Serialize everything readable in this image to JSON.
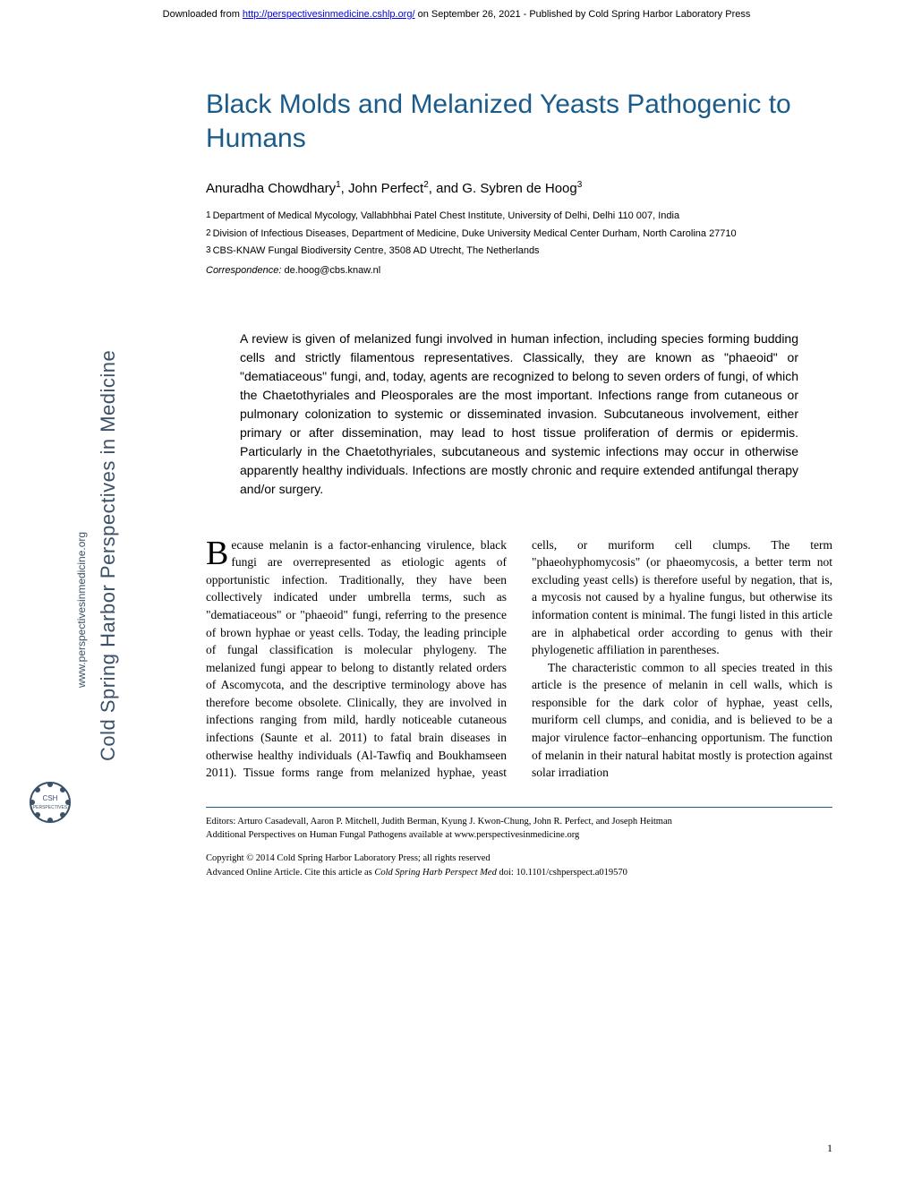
{
  "download_header": {
    "prefix": "Downloaded from ",
    "url": "http://perspectivesinmedicine.cshlp.org/",
    "suffix": " on September 26, 2021 - Published by Cold Spring Harbor Laboratory Press"
  },
  "sidebar": {
    "journal_name": "Cold Spring Harbor Perspectives in Medicine",
    "website": "www.perspectivesinmedicine.org",
    "logo_label": "CSHL PERSPECTIVES"
  },
  "title": "Black Molds and Melanized Yeasts Pathogenic to Humans",
  "authors_html": "Anuradha Chowdhary<sup>1</sup>, John Perfect<sup>2</sup>, and G. Sybren de Hoog<sup>3</sup>",
  "affiliations": [
    {
      "num": "1",
      "text": "Department of Medical Mycology, Vallabhbhai Patel Chest Institute, University of Delhi, Delhi 110 007, India"
    },
    {
      "num": "2",
      "text": "Division of Infectious Diseases, Department of Medicine, Duke University Medical Center Durham, North Carolina 27710"
    },
    {
      "num": "3",
      "text": "CBS-KNAW Fungal Biodiversity Centre, 3508 AD Utrecht, The Netherlands"
    }
  ],
  "correspondence": {
    "label": "Correspondence:",
    "email": "de.hoog@cbs.knaw.nl"
  },
  "abstract": "A review is given of melanized fungi involved in human infection, including species forming budding cells and strictly filamentous representatives. Classically, they are known as \"phaeoid\" or \"dematiaceous\" fungi, and, today, agents are recognized to belong to seven orders of fungi, of which the Chaetothyriales and Pleosporales are the most important. Infections range from cutaneous or pulmonary colonization to systemic or disseminated invasion. Subcutaneous involvement, either primary or after dissemination, may lead to host tissue proliferation of dermis or epidermis. Particularly in the Chaetothyriales, subcutaneous and systemic infections may occur in otherwise apparently healthy individuals. Infections are mostly chronic and require extended antifungal therapy and/or surgery.",
  "body": {
    "p1_dropcap": "B",
    "p1": "ecause melanin is a factor-enhancing virulence, black fungi are overrepresented as etiologic agents of opportunistic infection. Traditionally, they have been collectively indicated under umbrella terms, such as \"dematiaceous\" or \"phaeoid\" fungi, referring to the presence of brown hyphae or yeast cells. Today, the leading principle of fungal classification is molecular phylogeny. The melanized fungi appear to belong to distantly related orders of Ascomycota, and the descriptive terminology above has therefore become obsolete. Clinically, they are involved in infections ranging from mild, hardly noticeable cutaneous infections (Saunte et al. 2011) to fatal brain diseases in otherwise healthy individuals (Al-Tawfiq and Boukhamseen 2011). Tissue forms range from melanized hyphae, yeast cells, or muriform cell clumps. The term \"phaeohyphomycosis\" (or phaeomycosis, a better term not excluding yeast cells) is therefore useful by negation, that is, a mycosis not caused by a hyaline fungus, but otherwise its information content is minimal. The fungi listed in this article are in alphabetical order according to genus with their phylogenetic affiliation in parentheses.",
    "p2": "The characteristic common to all species treated in this article is the presence of melanin in cell walls, which is responsible for the dark color of hyphae, yeast cells, muriform cell clumps, and conidia, and is believed to be a major virulence factor–enhancing opportunism. The function of melanin in their natural habitat mostly is protection against solar irradiation"
  },
  "footer": {
    "editors": "Editors: Arturo Casadevall, Aaron P. Mitchell, Judith Berman, Kyung J. Kwon-Chung, John R. Perfect, and Joseph Heitman",
    "additional": "Additional Perspectives on Human Fungal Pathogens available at www.perspectivesinmedicine.org",
    "copyright": "Copyright © 2014 Cold Spring Harbor Laboratory Press; all rights reserved",
    "cite_prefix": "Advanced Online Article. Cite this article as ",
    "cite_italic": "Cold Spring Harb Perspect Med",
    "cite_suffix": " doi: 10.1101/cshperspect.a019570"
  },
  "page_number": "1",
  "colors": {
    "title_color": "#1a5b8a",
    "sidebar_color": "#3b5169",
    "link_color": "#0000ee",
    "rule_color": "#1a5b8a"
  }
}
